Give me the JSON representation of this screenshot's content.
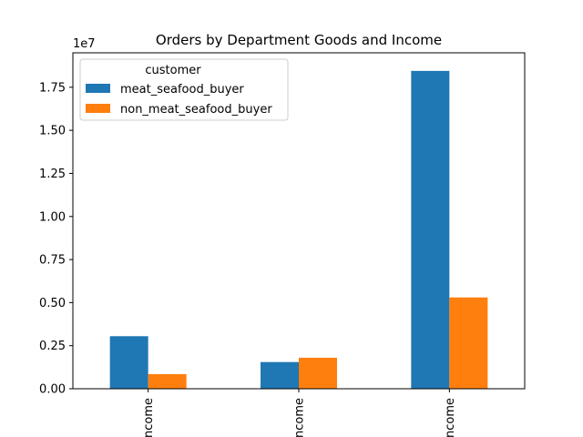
{
  "chart_data": {
    "type": "bar",
    "title": "Orders by Department Goods and Income",
    "xlabel": "",
    "ylabel": "",
    "y_offset_label": "1e7",
    "ylim": [
      0,
      19500000
    ],
    "y_ticks": [
      0,
      2500000,
      5000000,
      7500000,
      10000000,
      12500000,
      15000000,
      17500000
    ],
    "y_tick_labels": [
      "0.00",
      "0.25",
      "0.50",
      "0.75",
      "1.00",
      "1.25",
      "1.50",
      "1.75"
    ],
    "categories": [
      "ncome",
      "ncome",
      "ncome"
    ],
    "series": [
      {
        "name": "meat_seafood_buyer",
        "color": "#1f77b4",
        "values": [
          3050000,
          1550000,
          18450000
        ]
      },
      {
        "name": "non_meat_seafood_buyer",
        "color": "#ff7f0e",
        "values": [
          850000,
          1800000,
          5300000
        ]
      }
    ],
    "legend": {
      "title": "customer",
      "placement": "top-left"
    },
    "grid": false,
    "x_tick_rotation": "vertical"
  }
}
